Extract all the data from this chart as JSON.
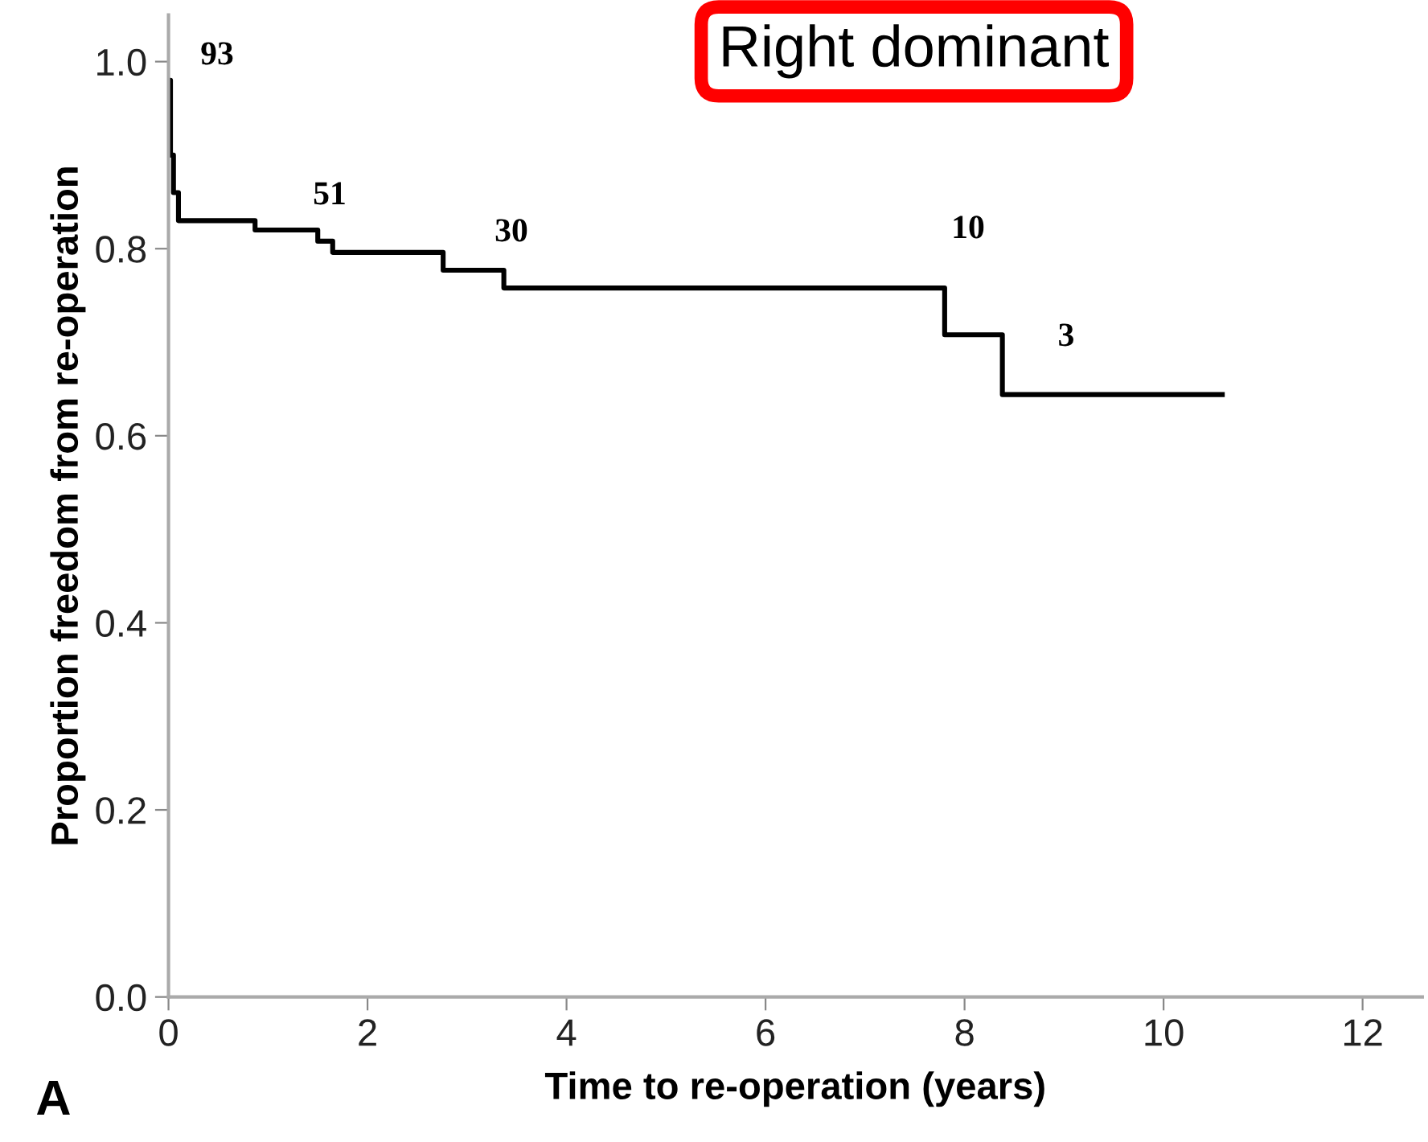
{
  "chart_data": {
    "type": "step",
    "title": "Right dominant",
    "xlabel": "Time to re-operation (years)",
    "ylabel": "Proportion freedom from re-operation",
    "series": [
      {
        "color": "#000000",
        "x": [
          0,
          0.02,
          0.05,
          0.1,
          0.87,
          1.5,
          1.65,
          2.76,
          3.37,
          7.8,
          8.38,
          10.59
        ],
        "values": [
          0.98,
          0.9,
          0.86,
          0.83,
          0.82,
          0.808,
          0.796,
          0.777,
          0.758,
          0.708,
          0.644,
          0.644
        ]
      }
    ],
    "annotations": [
      "93",
      "51",
      "30",
      "10",
      "3",
      "A"
    ],
    "xlim": [
      0,
      12.6
    ],
    "ylim": [
      0,
      1.05
    ],
    "xticks": [
      0,
      2,
      4,
      6,
      8,
      10,
      12
    ],
    "yticks": [
      {
        "value": 0,
        "label": "0.0"
      },
      {
        "value": 0.2,
        "label": "0.2"
      },
      {
        "value": 0.4,
        "label": "0.4"
      },
      {
        "value": 0.6,
        "label": "0.6"
      },
      {
        "value": 0.8,
        "label": "0.8"
      },
      {
        "value": 1.0,
        "label": "1.0"
      }
    ],
    "grid": false,
    "legend": false,
    "marker": "none",
    "line_style": "solid"
  }
}
